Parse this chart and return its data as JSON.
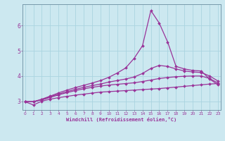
{
  "xlabel": "Windchill (Refroidissement éolien,°C)",
  "ylabel": "",
  "bg_color": "#cce8f0",
  "grid_color": "#aad4e0",
  "line_color": "#993399",
  "spine_color": "#7799aa",
  "x": [
    0,
    1,
    2,
    3,
    4,
    5,
    6,
    7,
    8,
    9,
    10,
    11,
    12,
    13,
    14,
    15,
    16,
    17,
    18,
    19,
    20,
    21,
    22,
    23
  ],
  "lines": [
    [
      2.98,
      2.85,
      3.0,
      3.08,
      3.14,
      3.19,
      3.24,
      3.28,
      3.32,
      3.36,
      3.38,
      3.4,
      3.42,
      3.44,
      3.46,
      3.48,
      3.5,
      3.53,
      3.56,
      3.59,
      3.62,
      3.65,
      3.68,
      3.7
    ],
    [
      2.98,
      2.98,
      3.05,
      3.15,
      3.25,
      3.34,
      3.42,
      3.49,
      3.55,
      3.6,
      3.64,
      3.67,
      3.7,
      3.73,
      3.78,
      3.84,
      3.9,
      3.94,
      3.97,
      3.99,
      4.0,
      4.0,
      3.9,
      3.72
    ],
    [
      2.98,
      2.98,
      3.06,
      3.18,
      3.28,
      3.38,
      3.47,
      3.55,
      3.62,
      3.68,
      3.76,
      3.82,
      3.88,
      3.96,
      4.1,
      4.3,
      4.42,
      4.38,
      4.28,
      4.2,
      4.16,
      4.14,
      4.0,
      3.8
    ],
    [
      2.98,
      2.98,
      3.08,
      3.2,
      3.33,
      3.44,
      3.54,
      3.63,
      3.72,
      3.82,
      3.95,
      4.12,
      4.32,
      4.7,
      5.2,
      6.6,
      6.1,
      5.35,
      4.38,
      4.28,
      4.22,
      4.2,
      3.88,
      3.65
    ]
  ],
  "xlim": [
    -0.3,
    23.3
  ],
  "ylim": [
    2.65,
    6.85
  ],
  "yticks": [
    3,
    4,
    5,
    6
  ],
  "xticks": [
    0,
    1,
    2,
    3,
    4,
    5,
    6,
    7,
    8,
    9,
    10,
    11,
    12,
    13,
    14,
    15,
    16,
    17,
    18,
    19,
    20,
    21,
    22,
    23
  ],
  "marker": "D",
  "marker_size": 2.0,
  "line_width": 0.9
}
